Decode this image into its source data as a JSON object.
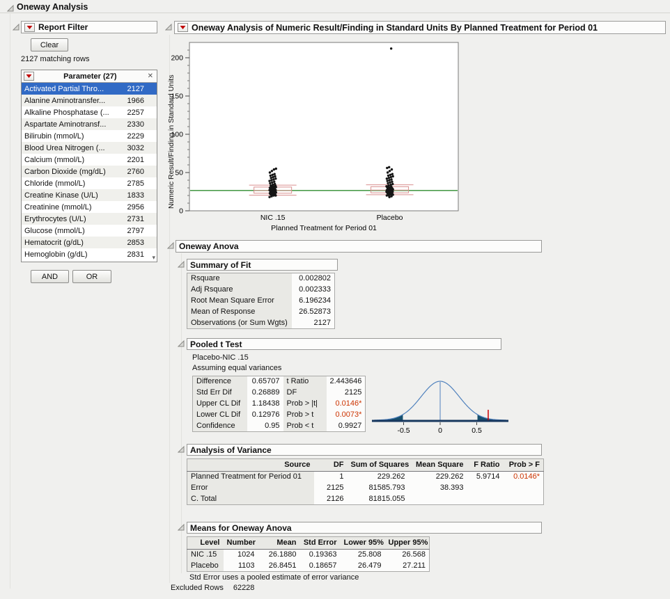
{
  "window": {
    "title": "Oneway Analysis"
  },
  "filter": {
    "title": "Report Filter",
    "clear_label": "Clear",
    "matching": "2127 matching rows",
    "param_header": "Parameter (27)",
    "and_label": "AND",
    "or_label": "OR",
    "items": [
      {
        "label": "Activated Partial Thro...",
        "count": "2127",
        "selected": true
      },
      {
        "label": "Alanine Aminotransfer...",
        "count": "1966",
        "selected": false
      },
      {
        "label": "Alkaline Phosphatase (...",
        "count": "2257",
        "selected": false
      },
      {
        "label": "Aspartate Aminotransf...",
        "count": "2330",
        "selected": false
      },
      {
        "label": "Bilirubin (mmol/L)",
        "count": "2229",
        "selected": false
      },
      {
        "label": "Blood Urea Nitrogen (...",
        "count": "3032",
        "selected": false
      },
      {
        "label": "Calcium (mmol/L)",
        "count": "2201",
        "selected": false
      },
      {
        "label": "Carbon Dioxide (mg/dL)",
        "count": "2760",
        "selected": false
      },
      {
        "label": "Chloride (mmol/L)",
        "count": "2785",
        "selected": false
      },
      {
        "label": "Creatine Kinase (U/L)",
        "count": "1833",
        "selected": false
      },
      {
        "label": "Creatinine (mmol/L)",
        "count": "2956",
        "selected": false
      },
      {
        "label": "Erythrocytes (U/L)",
        "count": "2731",
        "selected": false
      },
      {
        "label": "Glucose (mmol/L)",
        "count": "2797",
        "selected": false
      },
      {
        "label": "Hematocrit (g/dL)",
        "count": "2853",
        "selected": false
      },
      {
        "label": "Hemoglobin (g/dL)",
        "count": "2831",
        "selected": false
      }
    ]
  },
  "report": {
    "title": "Oneway Analysis of Numeric Result/Finding in Standard Units By Planned Treatment for Period 01"
  },
  "sections": {
    "anova": "Oneway Anova",
    "summary_of_fit": "Summary of Fit",
    "pooled_t": "Pooled t Test",
    "aov": "Analysis of Variance",
    "means": "Means for Oneway Anova"
  },
  "summary_of_fit": {
    "rows": [
      {
        "label": "Rsquare",
        "value": "0.002802"
      },
      {
        "label": "Adj Rsquare",
        "value": "0.002333"
      },
      {
        "label": "Root Mean Square Error",
        "value": "6.196234"
      },
      {
        "label": "Mean of Response",
        "value": "26.52873"
      },
      {
        "label": "Observations (or Sum Wgts)",
        "value": "2127"
      }
    ]
  },
  "pooled_t": {
    "subtitle1": "Placebo-NIC .15",
    "subtitle2": "Assuming equal variances",
    "rows": [
      {
        "l1": "Difference",
        "v1": "0.65707",
        "l2": "t Ratio",
        "v2": "2.443646"
      },
      {
        "l1": "Std Err Dif",
        "v1": "0.26889",
        "l2": "DF",
        "v2": "2125"
      },
      {
        "l1": "Upper CL Dif",
        "v1": "1.18438",
        "l2": "Prob > |t|",
        "v2": "0.0146*"
      },
      {
        "l1": "Lower CL Dif",
        "v1": "0.12976",
        "l2": "Prob > t",
        "v2": "0.0073*"
      },
      {
        "l1": "Confidence",
        "v1": "0.95",
        "l2": "Prob < t",
        "v2": "0.9927"
      }
    ]
  },
  "anova_table": {
    "columns": [
      "Source",
      "DF",
      "Sum of Squares",
      "Mean Square",
      "F Ratio",
      "Prob > F"
    ],
    "rows": [
      [
        "Planned Treatment for Period 01",
        "1",
        "229.262",
        "229.262",
        "5.9714",
        "0.0146*"
      ],
      [
        "Error",
        "2125",
        "81585.793",
        "38.393",
        "",
        ""
      ],
      [
        "C. Total",
        "2126",
        "81815.055",
        "",
        "",
        ""
      ]
    ]
  },
  "means_table": {
    "columns": [
      "Level",
      "Number",
      "Mean",
      "Std Error",
      "Lower 95%",
      "Upper 95%"
    ],
    "rows": [
      [
        "NIC .15",
        "1024",
        "26.1880",
        "0.19363",
        "25.808",
        "26.568"
      ],
      [
        "Placebo",
        "1103",
        "26.8451",
        "0.18657",
        "26.479",
        "27.211"
      ]
    ],
    "footnote": "Std Error uses a pooled estimate of error variance"
  },
  "footer": {
    "excluded_label": "Excluded Rows",
    "excluded_value": "62228"
  },
  "colors": {
    "selection": "#316ac5",
    "significant": "#cc3300",
    "red_triangle": "#c00000",
    "grand_mean_line": "#2e8b2e"
  },
  "chart_data": [
    {
      "type": "scatter",
      "title": "Oneway Analysis of Numeric Result/Finding in Standard Units By Planned Treatment for Period 01",
      "xlabel": "Planned Treatment for Period 01",
      "ylabel": "Numeric Result/Finding in Standard Units",
      "categories": [
        "NIC .15",
        "Placebo"
      ],
      "ylim": [
        0,
        220
      ],
      "yticks": [
        0,
        50,
        100,
        150,
        200
      ],
      "grand_mean": 26.53,
      "colors": {
        "grand_mean": "#2e8b2e",
        "box": "#d98f8f",
        "points": "#151515"
      },
      "groups": [
        {
          "name": "NIC .15",
          "mean": 26.188,
          "median": 26.5,
          "q1": 23,
          "q3": 31,
          "ci_low": 20.5,
          "ci_high": 33.5,
          "points": [
            18,
            19,
            20,
            20,
            21,
            21,
            22,
            22,
            22,
            23,
            23,
            23,
            24,
            24,
            24,
            25,
            25,
            25,
            25,
            26,
            26,
            26,
            26,
            27,
            27,
            27,
            27,
            28,
            28,
            28,
            29,
            29,
            29,
            30,
            30,
            31,
            31,
            32,
            32,
            33,
            33,
            34,
            35,
            36,
            37,
            38,
            39,
            40,
            41,
            42,
            43,
            44,
            45,
            46,
            47,
            48,
            50,
            52,
            54,
            55
          ]
        },
        {
          "name": "Placebo",
          "mean": 26.8451,
          "median": 27,
          "q1": 23.5,
          "q3": 31.5,
          "ci_low": 21,
          "ci_high": 34,
          "points": [
            18,
            19,
            20,
            20,
            21,
            21,
            22,
            22,
            22,
            23,
            23,
            23,
            24,
            24,
            24,
            25,
            25,
            25,
            25,
            26,
            26,
            26,
            26,
            27,
            27,
            27,
            27,
            28,
            28,
            28,
            29,
            29,
            29,
            30,
            30,
            31,
            31,
            32,
            32,
            33,
            34,
            35,
            36,
            37,
            38,
            39,
            40,
            41,
            42,
            43,
            44,
            45,
            46,
            47,
            48,
            50,
            52,
            54,
            56,
            57,
            212
          ]
        }
      ]
    },
    {
      "type": "line",
      "name": "pooled-t-density-curve",
      "sd": 0.26,
      "xmin": -0.9,
      "xmax": 0.9,
      "crit": 0.51,
      "diff": 0.657,
      "colors": {
        "curve": "#4f81bd",
        "fill": "#17506e",
        "baseline": "#17375e",
        "marker": "#cc0000"
      },
      "ticks": [
        {
          "v": -0.5,
          "label": "-0.5"
        },
        {
          "v": 0,
          "label": "0"
        },
        {
          "v": 0.5,
          "label": "0.5"
        }
      ]
    }
  ]
}
